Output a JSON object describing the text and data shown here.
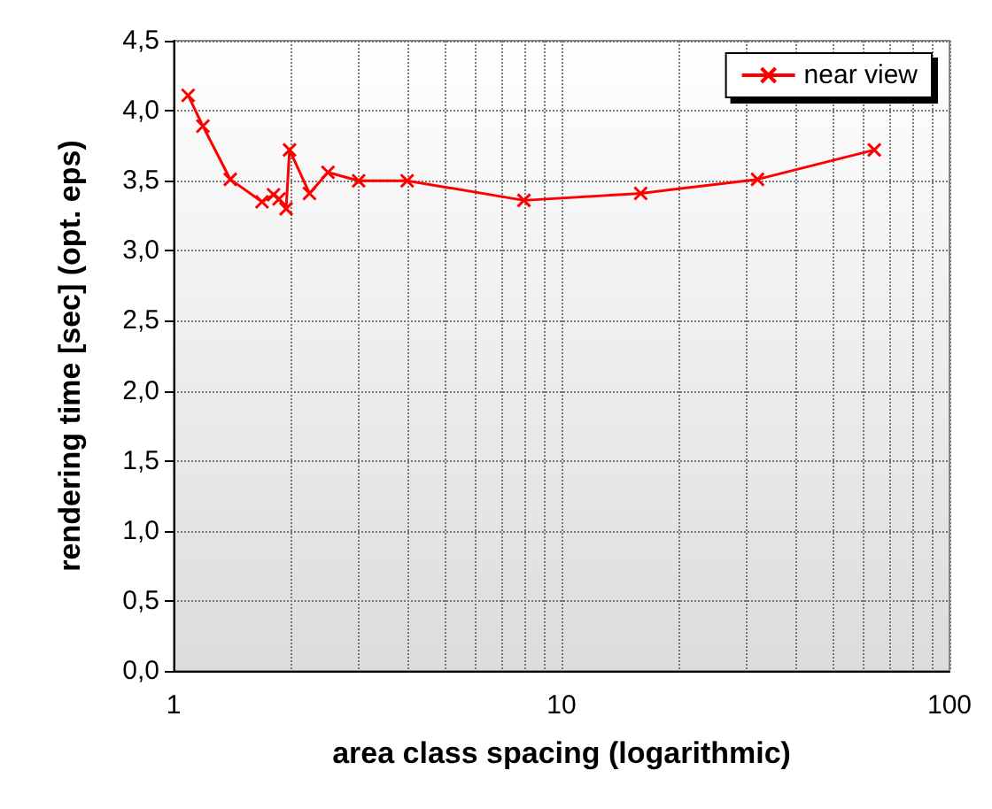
{
  "chart_data": {
    "type": "line",
    "xlabel": "area class spacing (logarithmic)",
    "ylabel": "rendering time [sec] (opt. eps)",
    "log": "x",
    "grid": true,
    "legend": "top right",
    "marker": "cross",
    "line_style": "solid",
    "xlim": [
      1,
      100
    ],
    "xticks": [
      1,
      10,
      100
    ],
    "ylim": [
      0,
      4.5
    ],
    "yticks": [
      {
        "value": 0,
        "label": "0,0"
      },
      {
        "value": 0.5,
        "label": "0,5"
      },
      {
        "value": 1,
        "label": "1,0"
      },
      {
        "value": 1.5,
        "label": "1,5"
      },
      {
        "value": 2,
        "label": "2,0"
      },
      {
        "value": 2.5,
        "label": "2,5"
      },
      {
        "value": 3,
        "label": "3,0"
      },
      {
        "value": 3.5,
        "label": "3,5"
      },
      {
        "value": 4,
        "label": "4,0"
      },
      {
        "value": 4.5,
        "label": "4,5"
      }
    ],
    "x": [
      1.09,
      1.19,
      1.4,
      1.69,
      1.81,
      1.87,
      1.95,
      1.99,
      2.24,
      2.5,
      3,
      4,
      8,
      16,
      32,
      64
    ],
    "series": [
      {
        "name": "near view",
        "color": "#ff0000",
        "values": [
          4.11,
          3.89,
          3.51,
          3.35,
          3.4,
          3.37,
          3.3,
          3.72,
          3.41,
          3.56,
          3.5,
          3.5,
          3.36,
          3.41,
          3.51,
          3.72
        ]
      }
    ]
  }
}
